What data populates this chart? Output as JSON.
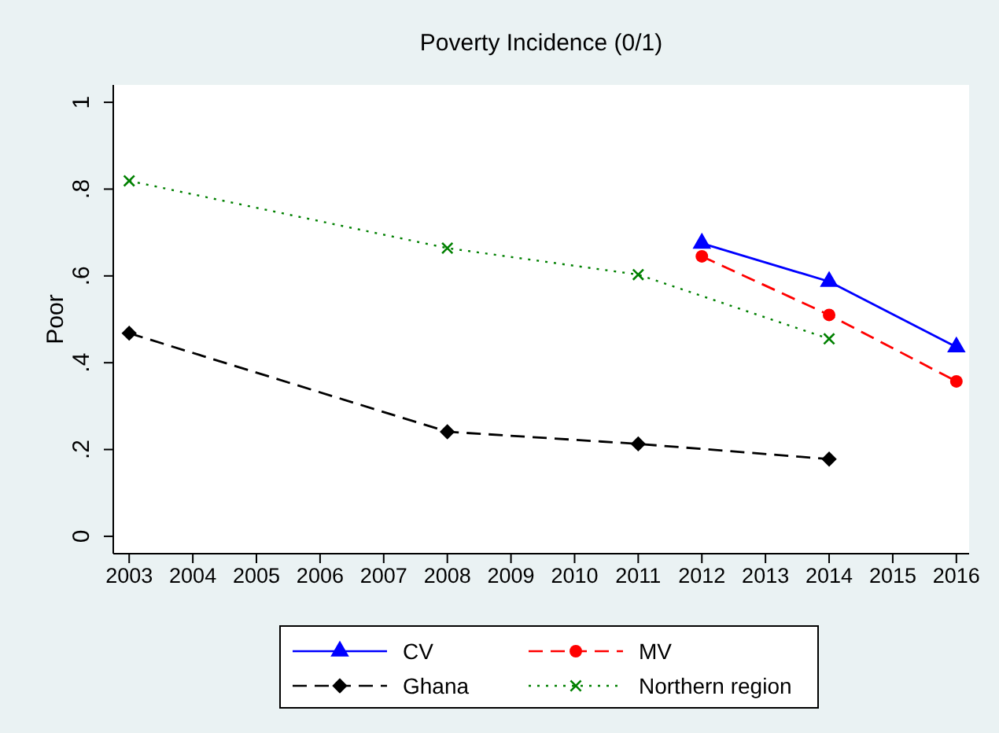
{
  "chart_data": {
    "type": "line",
    "title": "Poverty Incidence  (0/1)",
    "ylabel": "Poor",
    "xlim": [
      2002.75,
      2016.2
    ],
    "xticks": [
      2003,
      2004,
      2005,
      2006,
      2007,
      2008,
      2009,
      2010,
      2011,
      2012,
      2013,
      2014,
      2015,
      2016
    ],
    "ylim": [
      -0.04,
      1.04
    ],
    "yticks": [
      0,
      {
        "value": 0.2,
        "label": ".2"
      },
      {
        "value": 0.4,
        "label": ".4"
      },
      {
        "value": 0.6,
        "label": ".6"
      },
      {
        "value": 0.8,
        "label": ".8"
      },
      1
    ],
    "grid": false,
    "legend": "bottom",
    "series": [
      {
        "name": "CV",
        "color": "#0000ff",
        "marker": "triangle",
        "line_style": "solid",
        "x": [
          2012,
          2014,
          2016
        ],
        "values": [
          0.675,
          0.587,
          0.436
        ]
      },
      {
        "name": "MV",
        "color": "#ff0000",
        "marker": "circle",
        "line_style": "dashed",
        "x": [
          2012,
          2014,
          2016
        ],
        "values": [
          0.645,
          0.51,
          0.357
        ]
      },
      {
        "name": "Ghana",
        "color": "#000000",
        "marker": "diamond",
        "line_style": "dashed",
        "x": [
          2003,
          2008,
          2011,
          2014
        ],
        "values": [
          0.468,
          0.241,
          0.213,
          0.178
        ]
      },
      {
        "name": "Northern region",
        "color": "#008000",
        "marker": "cross",
        "line_style": "dotted",
        "x": [
          2003,
          2008,
          2011,
          2014
        ],
        "values": [
          0.819,
          0.664,
          0.603,
          0.455
        ]
      }
    ]
  }
}
